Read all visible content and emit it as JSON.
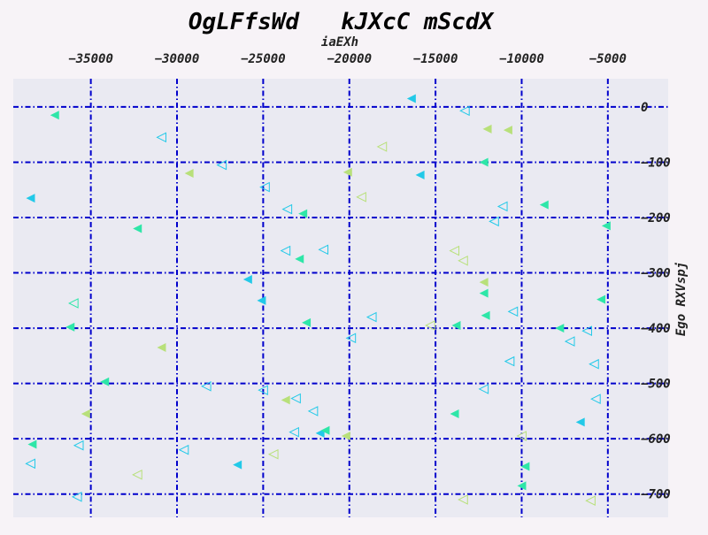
{
  "chart_data": {
    "type": "scatter",
    "title": "OgLFfsWd   kJXcC mScdX",
    "xlabel": "iaEXh",
    "ylabel": "Ego RXVspj",
    "xlim": [
      -39500,
      -1500
    ],
    "ylim": [
      -742,
      51
    ],
    "x_ticks": [
      -35000,
      -30000,
      -25000,
      -20000,
      -15000,
      -10000,
      -5000
    ],
    "x_tick_labels": [
      "−35000",
      "−30000",
      "−25000",
      "−20000",
      "−15000",
      "−10000",
      "−5000"
    ],
    "y_ticks": [
      0,
      -100,
      -200,
      -300,
      -400,
      -500,
      -600,
      -700
    ],
    "y_tick_labels": [
      "0",
      "−100",
      "−200",
      "−300",
      "−400",
      "−500",
      "−600",
      "−700"
    ],
    "x_axis_position": "top",
    "y_axis_position": "right",
    "grid": true,
    "grid_style": "dash-dot",
    "colors": {
      "background": "#f7f3f7",
      "plot_background": "#eaeaf2",
      "grid": "#0000cc",
      "cyan": "#22c9e8",
      "teal": "#2ee6a8",
      "lime": "#b8e07a"
    },
    "series": [
      {
        "marker": "triangle-left",
        "points": [
          {
            "x": -37100,
            "y": -15,
            "color": "teal",
            "filled": true
          },
          {
            "x": -38500,
            "y": -165,
            "color": "cyan",
            "filled": true
          },
          {
            "x": -32300,
            "y": -220,
            "color": "teal",
            "filled": true
          },
          {
            "x": -30900,
            "y": -55,
            "color": "cyan",
            "filled": false
          },
          {
            "x": -29300,
            "y": -120,
            "color": "lime",
            "filled": true
          },
          {
            "x": -27400,
            "y": -105,
            "color": "cyan",
            "filled": false
          },
          {
            "x": -24900,
            "y": -145,
            "color": "cyan",
            "filled": false
          },
          {
            "x": -23600,
            "y": -185,
            "color": "cyan",
            "filled": false
          },
          {
            "x": -22700,
            "y": -193,
            "color": "teal",
            "filled": true
          },
          {
            "x": -20100,
            "y": -118,
            "color": "lime",
            "filled": true
          },
          {
            "x": -19300,
            "y": -163,
            "color": "lime",
            "filled": false
          },
          {
            "x": -18100,
            "y": -72,
            "color": "lime",
            "filled": false
          },
          {
            "x": -16400,
            "y": 15,
            "color": "cyan",
            "filled": true
          },
          {
            "x": -15900,
            "y": -123,
            "color": "cyan",
            "filled": true
          },
          {
            "x": -13300,
            "y": -7,
            "color": "cyan",
            "filled": false
          },
          {
            "x": -12000,
            "y": -40,
            "color": "lime",
            "filled": true
          },
          {
            "x": -10800,
            "y": -42,
            "color": "lime",
            "filled": true
          },
          {
            "x": -12200,
            "y": -100,
            "color": "teal",
            "filled": true
          },
          {
            "x": -11100,
            "y": -180,
            "color": "cyan",
            "filled": false
          },
          {
            "x": -11600,
            "y": -207,
            "color": "cyan",
            "filled": false
          },
          {
            "x": -8700,
            "y": -177,
            "color": "teal",
            "filled": true
          },
          {
            "x": -5100,
            "y": -215,
            "color": "teal",
            "filled": true
          },
          {
            "x": -23700,
            "y": -260,
            "color": "cyan",
            "filled": false
          },
          {
            "x": -22900,
            "y": -275,
            "color": "teal",
            "filled": true
          },
          {
            "x": -21500,
            "y": -258,
            "color": "cyan",
            "filled": false
          },
          {
            "x": -25900,
            "y": -312,
            "color": "cyan",
            "filled": true
          },
          {
            "x": -25100,
            "y": -350,
            "color": "cyan",
            "filled": true
          },
          {
            "x": -36000,
            "y": -355,
            "color": "teal",
            "filled": false
          },
          {
            "x": -36200,
            "y": -398,
            "color": "teal",
            "filled": true
          },
          {
            "x": -30900,
            "y": -435,
            "color": "lime",
            "filled": true
          },
          {
            "x": -22500,
            "y": -390,
            "color": "teal",
            "filled": true
          },
          {
            "x": -19900,
            "y": -418,
            "color": "cyan",
            "filled": false
          },
          {
            "x": -18700,
            "y": -380,
            "color": "cyan",
            "filled": false
          },
          {
            "x": -15300,
            "y": -395,
            "color": "lime",
            "filled": false
          },
          {
            "x": -13900,
            "y": -260,
            "color": "lime",
            "filled": false
          },
          {
            "x": -13400,
            "y": -278,
            "color": "lime",
            "filled": false
          },
          {
            "x": -13800,
            "y": -395,
            "color": "teal",
            "filled": true
          },
          {
            "x": -12200,
            "y": -317,
            "color": "lime",
            "filled": true
          },
          {
            "x": -12200,
            "y": -337,
            "color": "teal",
            "filled": true
          },
          {
            "x": -12100,
            "y": -377,
            "color": "teal",
            "filled": true
          },
          {
            "x": -10500,
            "y": -370,
            "color": "cyan",
            "filled": false
          },
          {
            "x": -10700,
            "y": -460,
            "color": "cyan",
            "filled": false
          },
          {
            "x": -7800,
            "y": -400,
            "color": "teal",
            "filled": true
          },
          {
            "x": -7200,
            "y": -424,
            "color": "cyan",
            "filled": false
          },
          {
            "x": -6200,
            "y": -405,
            "color": "cyan",
            "filled": false
          },
          {
            "x": -5400,
            "y": -348,
            "color": "teal",
            "filled": true
          },
          {
            "x": -5800,
            "y": -465,
            "color": "cyan",
            "filled": false
          },
          {
            "x": -34200,
            "y": -497,
            "color": "teal",
            "filled": true
          },
          {
            "x": -28300,
            "y": -505,
            "color": "cyan",
            "filled": false
          },
          {
            "x": -25000,
            "y": -512,
            "color": "cyan",
            "filled": false
          },
          {
            "x": -23700,
            "y": -530,
            "color": "lime",
            "filled": true
          },
          {
            "x": -23100,
            "y": -527,
            "color": "cyan",
            "filled": false
          },
          {
            "x": -22100,
            "y": -550,
            "color": "cyan",
            "filled": false
          },
          {
            "x": -23200,
            "y": -588,
            "color": "cyan",
            "filled": false
          },
          {
            "x": -21700,
            "y": -590,
            "color": "cyan",
            "filled": true
          },
          {
            "x": -21400,
            "y": -585,
            "color": "teal",
            "filled": true
          },
          {
            "x": -20200,
            "y": -595,
            "color": "lime",
            "filled": true
          },
          {
            "x": -13900,
            "y": -555,
            "color": "teal",
            "filled": true
          },
          {
            "x": -12200,
            "y": -510,
            "color": "cyan",
            "filled": false
          },
          {
            "x": -10000,
            "y": -595,
            "color": "lime",
            "filled": false
          },
          {
            "x": -6600,
            "y": -570,
            "color": "cyan",
            "filled": true
          },
          {
            "x": -5700,
            "y": -528,
            "color": "cyan",
            "filled": false
          },
          {
            "x": -35300,
            "y": -555,
            "color": "lime",
            "filled": true
          },
          {
            "x": -38400,
            "y": -610,
            "color": "teal",
            "filled": true
          },
          {
            "x": -35700,
            "y": -612,
            "color": "cyan",
            "filled": false
          },
          {
            "x": -38500,
            "y": -645,
            "color": "cyan",
            "filled": false
          },
          {
            "x": -29600,
            "y": -620,
            "color": "cyan",
            "filled": false
          },
          {
            "x": -32300,
            "y": -665,
            "color": "lime",
            "filled": false
          },
          {
            "x": -26500,
            "y": -647,
            "color": "cyan",
            "filled": true
          },
          {
            "x": -24400,
            "y": -628,
            "color": "lime",
            "filled": false
          },
          {
            "x": -9800,
            "y": -650,
            "color": "teal",
            "filled": true
          },
          {
            "x": -10000,
            "y": -685,
            "color": "teal",
            "filled": true
          },
          {
            "x": -13400,
            "y": -710,
            "color": "lime",
            "filled": false
          },
          {
            "x": -35800,
            "y": -705,
            "color": "cyan",
            "filled": false
          },
          {
            "x": -6000,
            "y": -712,
            "color": "lime",
            "filled": false
          }
        ]
      }
    ]
  }
}
